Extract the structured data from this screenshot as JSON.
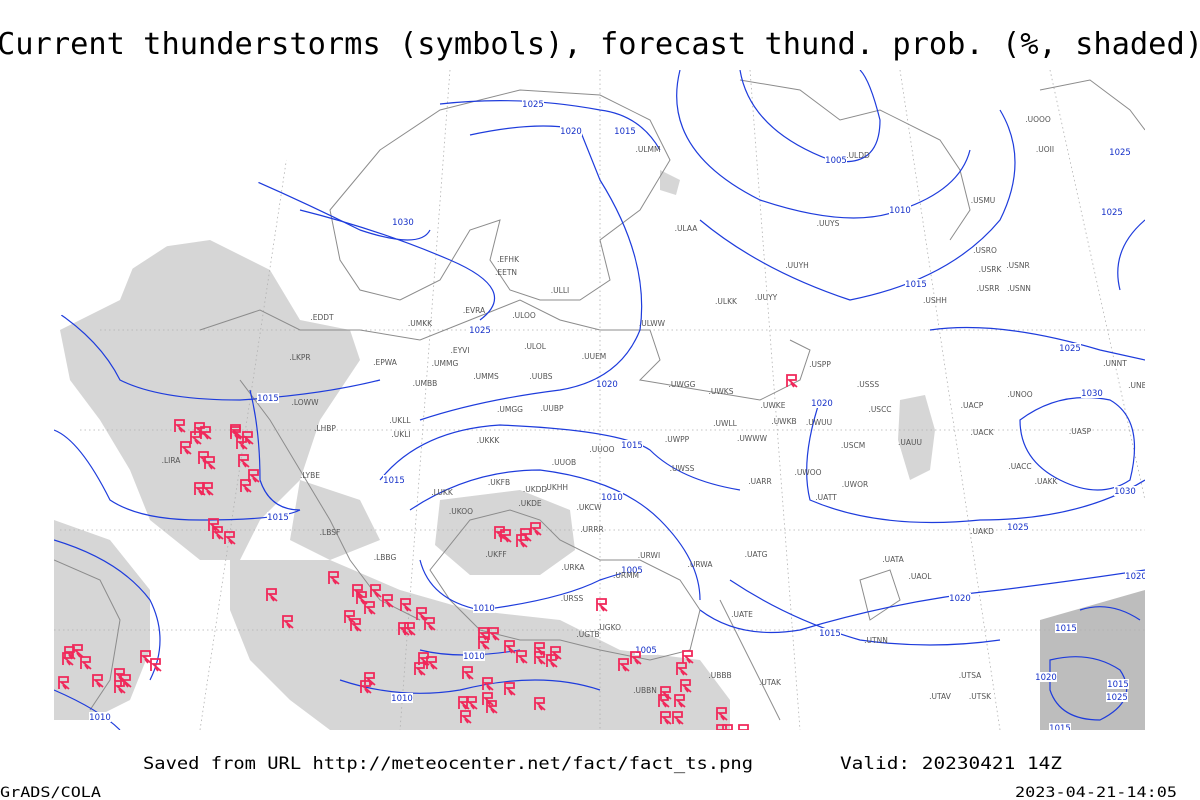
{
  "header": {
    "title": "Current thunderstorms (symbols), forecast thund. prob. (%, shaded)"
  },
  "map": {
    "isobar_labels": [
      "1025",
      "1020",
      "1015",
      "1005",
      "1010",
      "1030",
      "1025",
      "1015",
      "1020",
      "1015",
      "1025",
      "1030",
      "1020",
      "1015",
      "1015",
      "1010",
      "1015",
      "1030",
      "1025",
      "1005",
      "1010",
      "1010",
      "1005",
      "1020",
      "1015",
      "1010",
      "1010",
      "1025",
      "1025",
      "1020",
      "1015",
      "1020",
      "1015",
      "1025",
      "1015"
    ],
    "stations": [
      ".ULAA",
      ".UUYS",
      ".UUYH",
      ".ULKK",
      ".UUYY",
      ".UUEM",
      ".ULOL",
      ".UMMG",
      ".EPWA",
      ".UMMS",
      ".UUBS",
      ".UMGG",
      ".UUBP",
      ".UKLL",
      ".UKLI",
      ".UKKK",
      ".UUOO",
      ".UUOB",
      ".UWPP",
      ".UWSS",
      ".UARR",
      ".UWOO",
      ".UATT",
      ".USCM",
      ".USCC",
      ".USSS",
      ".USPP",
      ".UAUU",
      ".UACC",
      ".UAKK",
      ".UAKD",
      ".UATA",
      ".UAOL",
      ".UTNN",
      ".UTAK",
      ".LIRA",
      ".LYBE",
      ".LBSF",
      ".LBBG",
      ".LUKK",
      ".UKFF",
      ".URKA",
      ".URSS",
      ".UGKO",
      ".UGTB",
      ".UBBN",
      ".UBBB",
      ".UTSA",
      ".UTSK",
      ".UTAV",
      ".UATE",
      ".URMM",
      ".URWI",
      ".URWA",
      ".UATG",
      ".URRR",
      ".UKCW",
      ".UKDE",
      ".UKDD",
      ".UKHH",
      ".UKOO",
      ".UKFB",
      ".LHBP",
      ".LOWW",
      ".LKPR",
      ".EDDT",
      ".ULMM",
      ".EVRA",
      ".ULOO",
      ".EETN",
      ".EFHK",
      ".ULLI",
      ".ULWW",
      ".UMKK",
      ".EYVI",
      ".UMBB",
      ".USMU",
      ".USRO",
      ".USRK",
      ".USNR",
      ".USRR",
      ".USNN",
      ".USHH",
      ".UNNT",
      ".UNBB",
      ".UNOO",
      ".UACP",
      ".UACK",
      ".UASP",
      ".UWKE",
      ".UWKS",
      ".UWGG",
      ".UWLL",
      ".UWKB",
      ".UWUU",
      ".UWWW",
      ".UWOR",
      ".UOOO",
      ".UOII",
      ".ULDD"
    ]
  },
  "footer": {
    "source": "Saved from URL http://meteocenter.net/fact/fact_ts.png",
    "valid": "Valid: 20230421 14Z",
    "credit": "GrADS/COLA",
    "timestamp": "2023-04-21-14:05"
  }
}
